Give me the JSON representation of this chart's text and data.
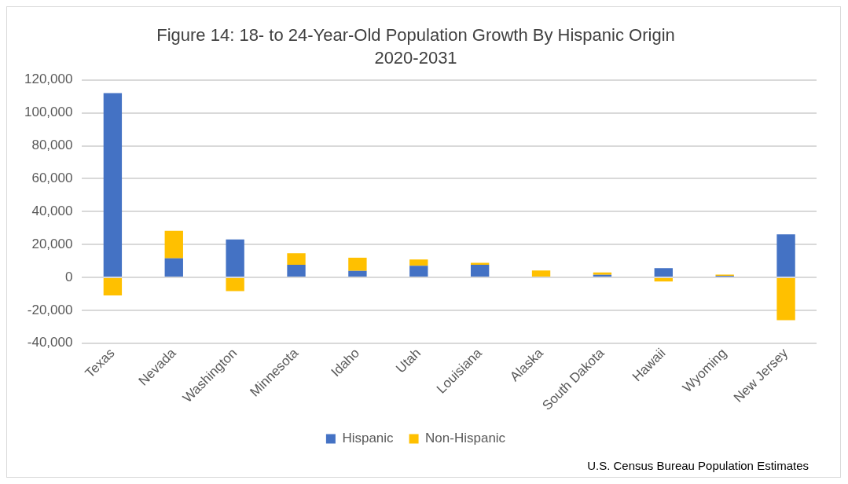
{
  "chart_data": {
    "type": "bar",
    "title": "Figure 14: 18- to 24-Year-Old Population Growth By Hispanic Origin",
    "subtitle": "2020-2031",
    "categories": [
      "Texas",
      "Nevada",
      "Washington",
      "Minnesota",
      "Idaho",
      "Utah",
      "Louisiana",
      "Alaska",
      "South Dakota",
      "Hawaii",
      "Wyoming",
      "New Jersey"
    ],
    "series": [
      {
        "name": "Hispanic",
        "color": "#4472c4",
        "values": [
          112000,
          11600,
          23100,
          7700,
          4000,
          7000,
          7600,
          0,
          1500,
          5600,
          1000,
          26200
        ]
      },
      {
        "name": "Non-Hispanic",
        "color": "#ffc000",
        "values": [
          -11000,
          16700,
          -8400,
          7000,
          8000,
          3900,
          1200,
          4200,
          1500,
          -2500,
          700,
          -26000
        ]
      }
    ],
    "stacked": true,
    "ylim": [
      -40000,
      120000
    ],
    "yticks": [
      {
        "value": -40000,
        "label": "-40,000"
      },
      {
        "value": -20000,
        "label": "-20,000"
      },
      0,
      {
        "value": 20000,
        "label": "20,000"
      },
      {
        "value": 40000,
        "label": "40,000"
      },
      {
        "value": 60000,
        "label": "60,000"
      },
      {
        "value": 80000,
        "label": "80,000"
      },
      {
        "value": 100000,
        "label": "100,000"
      },
      {
        "value": 120000,
        "label": "120,000"
      }
    ],
    "grid": "y",
    "legend": "bottom",
    "annotations": [
      "U.S. Census Bureau Population Estimates"
    ]
  }
}
